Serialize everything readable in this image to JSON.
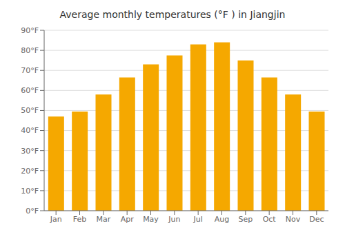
{
  "chart_data": {
    "type": "bar",
    "title": "Average monthly temperatures (°F ) in Jiangjin",
    "categories": [
      "Jan",
      "Feb",
      "Mar",
      "Apr",
      "May",
      "Jun",
      "Jul",
      "Aug",
      "Sep",
      "Oct",
      "Nov",
      "Dec"
    ],
    "values": [
      47,
      49.5,
      58,
      66.5,
      73,
      77.5,
      83,
      84,
      75,
      66.5,
      58,
      49.5
    ],
    "color": "#F5A800",
    "ylim": [
      0,
      90
    ],
    "yticks": [
      {
        "value": 0,
        "label": "0°F"
      },
      {
        "value": 10,
        "label": "10°F"
      },
      {
        "value": 20,
        "label": "20°F"
      },
      {
        "value": 30,
        "label": "30°F"
      },
      {
        "value": 40,
        "label": "40°F"
      },
      {
        "value": 50,
        "label": "50°F"
      },
      {
        "value": 60,
        "label": "60°F"
      },
      {
        "value": 70,
        "label": "70°F"
      },
      {
        "value": 80,
        "label": "80°F"
      },
      {
        "value": 90,
        "label": "90°F"
      }
    ],
    "grid": true
  }
}
